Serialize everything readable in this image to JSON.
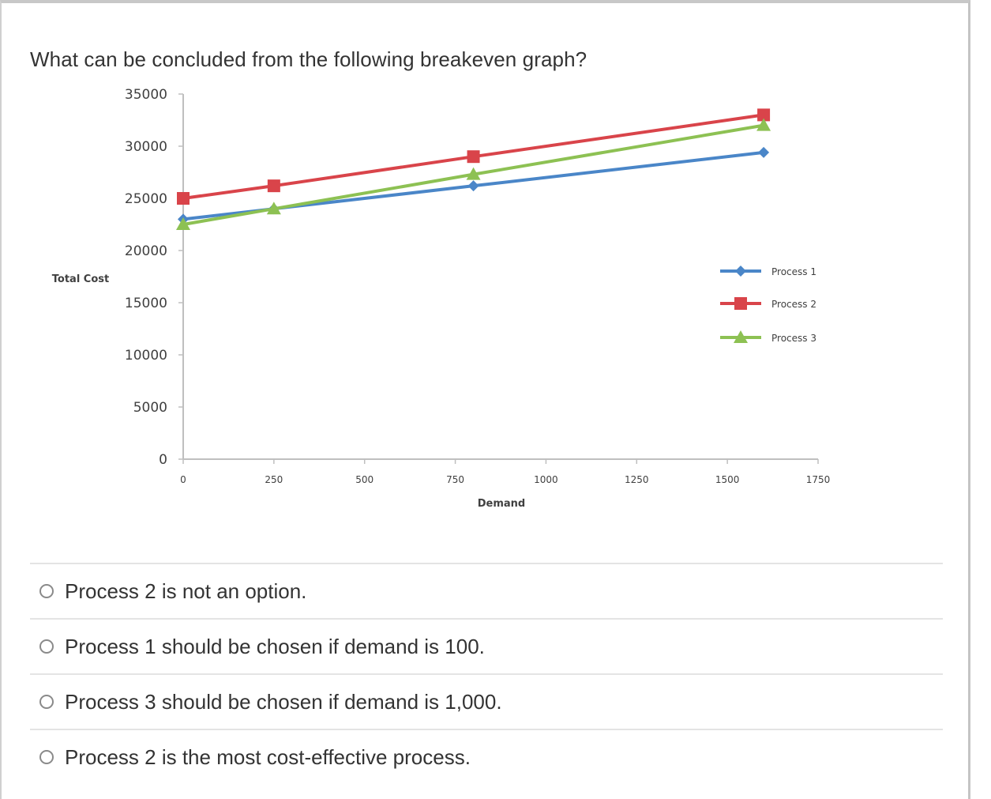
{
  "question": {
    "text": "What can be concluded from the following breakeven graph?"
  },
  "answers": [
    {
      "label": "Process 2 is not an option."
    },
    {
      "label": "Process 1 should be chosen if demand is 100."
    },
    {
      "label": "Process 3 should be chosen if demand is 1,000."
    },
    {
      "label": "Process 2 is the most cost-effective process."
    }
  ],
  "colors": {
    "process1": "#4a86c8",
    "process2": "#d9444a",
    "process3": "#8dc153",
    "axis": "#bfbfbf",
    "text": "#333333"
  },
  "chart_data": {
    "type": "line",
    "title": "",
    "xlabel": "Demand",
    "ylabel": "Total Cost",
    "xlim": [
      0,
      1750
    ],
    "ylim": [
      0,
      35000
    ],
    "x_ticks": [
      0,
      250,
      500,
      750,
      1000,
      1250,
      1500,
      1750
    ],
    "y_ticks": [
      0,
      5000,
      10000,
      15000,
      20000,
      25000,
      30000,
      35000
    ],
    "grid": false,
    "legend_position": "right",
    "x": [
      0,
      250,
      800,
      1600
    ],
    "series": [
      {
        "name": "Process 1",
        "marker": "diamond",
        "color": "#4a86c8",
        "values": [
          23000,
          24000,
          26200,
          29400
        ]
      },
      {
        "name": "Process 2",
        "marker": "square",
        "color": "#d9444a",
        "values": [
          25000,
          26200,
          29000,
          33000
        ]
      },
      {
        "name": "Process 3",
        "marker": "triangle",
        "color": "#8dc153",
        "values": [
          22500,
          24000,
          27300,
          32000
        ]
      }
    ]
  }
}
